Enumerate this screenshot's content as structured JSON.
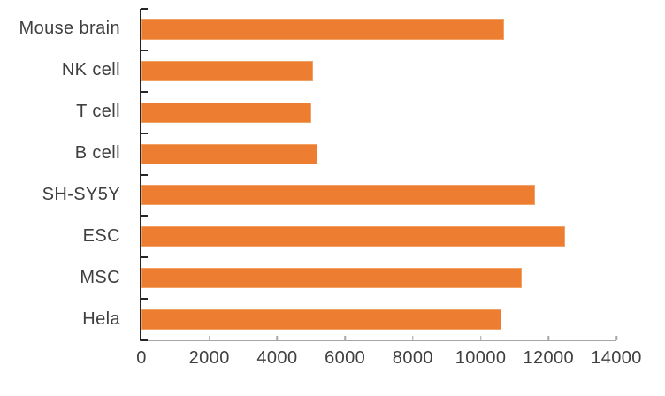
{
  "chart_data": {
    "type": "bar",
    "orientation": "horizontal",
    "title": "",
    "xlabel": "",
    "ylabel": "",
    "categories": [
      "Mouse brain",
      "NK cell",
      "T cell",
      "B cell",
      "SH-SY5Y",
      "ESC",
      "MSC",
      "Hela"
    ],
    "values": [
      10700,
      5050,
      5000,
      5180,
      11600,
      12500,
      11200,
      10600
    ],
    "xlim": [
      0,
      14000
    ],
    "x_tick_step": 2000,
    "x_tick_labels": [
      "0",
      "2000",
      "4000",
      "6000",
      "8000",
      "10000",
      "12000",
      "14000"
    ],
    "grid": false,
    "legend": false,
    "colors": {
      "bar_fill": "#ED7D31",
      "bar_edge": "#F2A265",
      "y_axis": "#262626",
      "x_axis": "#A6A6A6",
      "text": "#3F3F3F"
    }
  }
}
